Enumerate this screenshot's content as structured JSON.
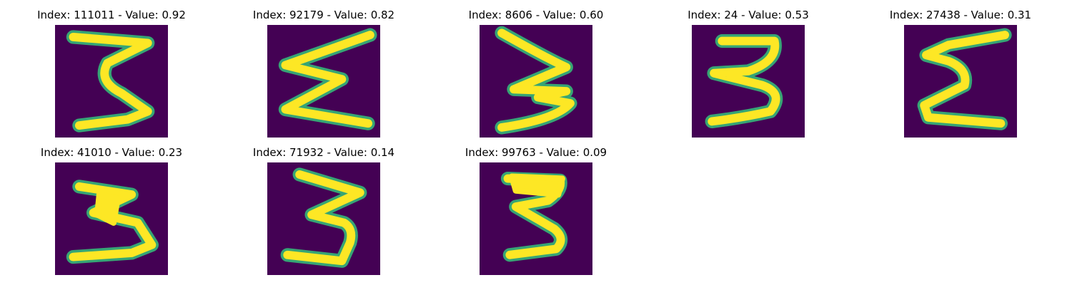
{
  "colors": {
    "background": "#440154",
    "stroke_core": "#fde725",
    "stroke_edge": "#35b779"
  },
  "panels": [
    {
      "index": "111011",
      "value": "0.92",
      "label": "Index: 111011 - Value: 0.92"
    },
    {
      "index": "92179",
      "value": "0.82",
      "label": "Index: 92179 - Value: 0.82"
    },
    {
      "index": "8606",
      "value": "0.60",
      "label": "Index: 8606 - Value: 0.60"
    },
    {
      "index": "24",
      "value": "0.53",
      "label": "Index: 24 - Value: 0.53"
    },
    {
      "index": "27438",
      "value": "0.31",
      "label": "Index: 27438 - Value: 0.31"
    },
    {
      "index": "41010",
      "value": "0.23",
      "label": "Index: 41010 - Value: 0.23"
    },
    {
      "index": "71932",
      "value": "0.14",
      "label": "Index: 71932 - Value: 0.14"
    },
    {
      "index": "99763",
      "value": "0.09",
      "label": "Index: 99763 - Value: 0.09"
    }
  ]
}
